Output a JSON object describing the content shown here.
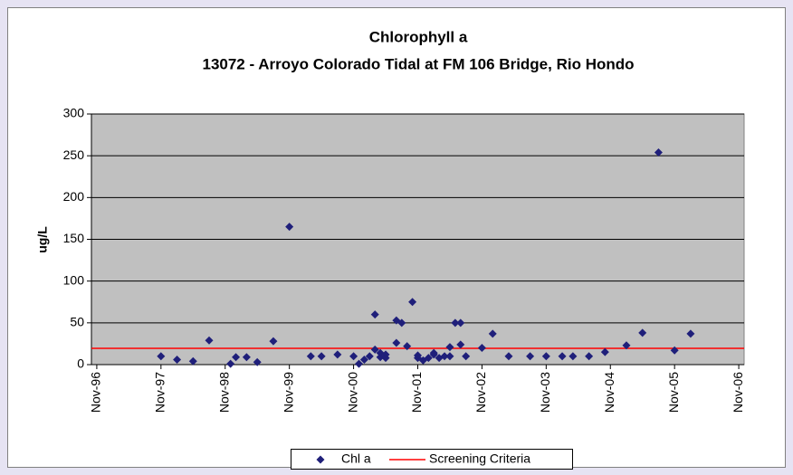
{
  "chart_data": {
    "type": "scatter",
    "title": "Chlorophyll a",
    "subtitle": "13072 - Arroyo Colorado Tidal at FM 106 Bridge, Rio Hondo",
    "y_label": "ug/L",
    "series": [
      {
        "name": "Chl a",
        "color": "#1f1f7a",
        "x": [
          "1997-11",
          "1998-02",
          "1998-05",
          "1998-08",
          "1998-12",
          "1999-01",
          "1999-03",
          "1999-05",
          "1999-08",
          "1999-11",
          "2000-03",
          "2000-05",
          "2000-08",
          "2000-11",
          "2000-12",
          "2001-01",
          "2001-02",
          "2001-03",
          "2001-03",
          "2001-04",
          "2001-04",
          "2001-05",
          "2001-05",
          "2001-07",
          "2001-07",
          "2001-08",
          "2001-09",
          "2001-10",
          "2001-11",
          "2001-11",
          "2001-12",
          "2002-01",
          "2002-02",
          "2002-02",
          "2002-03",
          "2002-04",
          "2002-05",
          "2002-05",
          "2002-06",
          "2002-07",
          "2002-07",
          "2002-08",
          "2002-11",
          "2003-01",
          "2003-04",
          "2003-08",
          "2003-11",
          "2004-02",
          "2004-04",
          "2004-07",
          "2004-10",
          "2005-02",
          "2005-05",
          "2005-08",
          "2005-11",
          "2006-02"
        ],
        "values": [
          10,
          6,
          4,
          29,
          1,
          9,
          9,
          3,
          28,
          165,
          10,
          10,
          12,
          10,
          1,
          6,
          10,
          18,
          60,
          9,
          14,
          12,
          8,
          26,
          53,
          50,
          22,
          75,
          8,
          11,
          5,
          8,
          12,
          14,
          8,
          10,
          21,
          10,
          50,
          50,
          24,
          10,
          20,
          37,
          10,
          10,
          10,
          10,
          10,
          10,
          15,
          23,
          38,
          254,
          17,
          37
        ]
      }
    ],
    "screening_criteria": {
      "name": "Screening Criteria",
      "value": 19.5,
      "color": "#ff0000"
    },
    "xlim": [
      "1996-10",
      "2006-12"
    ],
    "xticks": [
      {
        "value": "1996-11",
        "label": "Nov-96"
      },
      {
        "value": "1997-11",
        "label": "Nov-97"
      },
      {
        "value": "1998-11",
        "label": "Nov-98"
      },
      {
        "value": "1999-11",
        "label": "Nov-99"
      },
      {
        "value": "2000-11",
        "label": "Nov-00"
      },
      {
        "value": "2001-11",
        "label": "Nov-01"
      },
      {
        "value": "2002-11",
        "label": "Nov-02"
      },
      {
        "value": "2003-11",
        "label": "Nov-03"
      },
      {
        "value": "2004-11",
        "label": "Nov-04"
      },
      {
        "value": "2005-11",
        "label": "Nov-05"
      },
      {
        "value": "2006-11",
        "label": "Nov-06"
      }
    ],
    "ylim": [
      0,
      300
    ],
    "yticks": [
      0,
      50,
      100,
      150,
      200,
      250,
      300
    ],
    "grid": true
  }
}
